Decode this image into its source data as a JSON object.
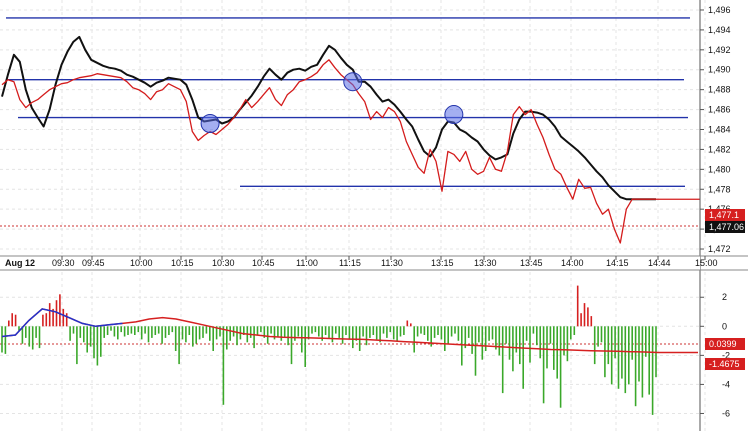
{
  "chart_data": [
    {
      "type": "line",
      "panel": "price",
      "date_label": "Aug 12",
      "x_tick_labels": [
        "09:30",
        "09:45",
        "10:00",
        "10:15",
        "10:30",
        "10:45",
        "11:00",
        "11:15",
        "11:30",
        "13:15",
        "13:30",
        "13:45",
        "14:00",
        "14:15",
        "14:44",
        "15:00"
      ],
      "y_ticks": [
        "1,472",
        "1,474",
        "1,476",
        "1,478",
        "1,480",
        "1,482",
        "1,484",
        "1,486",
        "1,488",
        "1,490",
        "1,492",
        "1,494",
        "1,496"
      ],
      "ylim": [
        1.4715,
        1.4965
      ],
      "grid": true,
      "x": [
        0,
        2,
        4,
        6,
        8,
        10,
        12,
        14,
        16,
        18,
        20,
        22,
        24,
        26,
        28,
        30,
        32,
        34,
        36,
        38,
        40,
        42,
        44,
        46,
        48,
        50,
        52,
        54,
        56,
        58,
        60,
        62,
        64,
        66,
        68,
        70,
        72,
        74,
        76,
        78,
        80,
        82,
        84,
        86,
        88,
        90,
        92,
        94,
        96,
        98,
        100,
        102,
        104,
        106,
        108,
        110,
        112,
        114,
        116,
        118,
        120,
        122,
        124,
        126,
        128,
        130,
        132,
        134,
        136,
        138,
        140,
        142,
        144,
        146,
        148,
        150,
        152,
        154,
        156,
        158,
        160,
        162,
        164,
        166,
        168,
        170,
        172,
        174,
        176,
        178,
        180,
        182,
        184,
        186,
        188,
        190,
        192,
        194,
        196,
        198,
        200,
        202,
        204,
        206,
        208,
        210,
        212,
        214,
        216,
        218,
        220
      ],
      "series": [
        {
          "values": [
            1.4873,
            1.4895,
            1.4915,
            1.4908,
            1.488,
            1.4862,
            1.4852,
            1.4843,
            1.486,
            1.4885,
            1.4905,
            1.4918,
            1.4928,
            1.4933,
            1.492,
            1.491,
            1.4907,
            1.4904,
            1.4902,
            1.4901,
            1.4899,
            1.4895,
            1.4893,
            1.489,
            1.4887,
            1.4883,
            1.4887,
            1.4889,
            1.4892,
            1.4891,
            1.489,
            1.4885,
            1.487,
            1.4852,
            1.4848,
            1.4849,
            1.485,
            1.4846,
            1.4848,
            1.4852,
            1.486,
            1.4867,
            1.4874,
            1.4883,
            1.4893,
            1.4901,
            1.4895,
            1.489,
            1.4897,
            1.49,
            1.4901,
            1.4899,
            1.4903,
            1.4905,
            1.4915,
            1.4924,
            1.492,
            1.4912,
            1.4905,
            1.49,
            1.4888,
            1.4888,
            1.4883,
            1.4875,
            1.4868,
            1.487,
            1.4865,
            1.4858,
            1.485,
            1.4843,
            1.483,
            1.4818,
            1.4813,
            1.4822,
            1.484,
            1.4848,
            1.4847,
            1.484,
            1.4837,
            1.4832,
            1.4828,
            1.482,
            1.4814,
            1.481,
            1.4812,
            1.4815,
            1.4836,
            1.485,
            1.4858,
            1.4858,
            1.4857,
            1.4855,
            1.485,
            1.4843,
            1.4833,
            1.4828,
            1.4823,
            1.4818,
            1.4812,
            1.4805,
            1.4798,
            1.4792,
            1.4784,
            1.4778,
            1.4772,
            1.477,
            1.477,
            1.477,
            1.477,
            1.477,
            1.477
          ]
        },
        {
          "values": [
            1.4885,
            1.489,
            1.4888,
            1.487,
            1.4862,
            1.4867,
            1.487,
            1.4875,
            1.488,
            1.4883,
            1.4886,
            1.4887,
            1.489,
            1.4892,
            1.4893,
            1.4894,
            1.4896,
            1.4895,
            1.4894,
            1.4893,
            1.4892,
            1.4888,
            1.4882,
            1.488,
            1.4876,
            1.487,
            1.4878,
            1.488,
            1.4886,
            1.4883,
            1.488,
            1.4868,
            1.4838,
            1.4829,
            1.4834,
            1.4838,
            1.4835,
            1.484,
            1.4845,
            1.4852,
            1.486,
            1.487,
            1.4862,
            1.4868,
            1.4875,
            1.4882,
            1.487,
            1.4864,
            1.4875,
            1.488,
            1.4888,
            1.489,
            1.4893,
            1.4897,
            1.4905,
            1.491,
            1.4902,
            1.4895,
            1.489,
            1.4885,
            1.4876,
            1.4868,
            1.485,
            1.4858,
            1.4852,
            1.4862,
            1.4858,
            1.4848,
            1.4828,
            1.4815,
            1.4802,
            1.4796,
            1.482,
            1.4808,
            1.4778,
            1.4818,
            1.4815,
            1.4808,
            1.4818,
            1.48,
            1.4795,
            1.4798,
            1.4812,
            1.48,
            1.4798,
            1.4818,
            1.4855,
            1.4863,
            1.4855,
            1.486,
            1.4845,
            1.4832,
            1.4815,
            1.48,
            1.4795,
            1.4782,
            1.477,
            1.479,
            1.4781,
            1.4782,
            1.4766,
            1.4755,
            1.476,
            1.474,
            1.4726,
            1.476,
            1.477,
            1.477,
            1.477,
            1.477,
            1.477
          ]
        }
      ],
      "horizontal_lines": [
        1.4952,
        1.489,
        1.4852,
        1.4783
      ],
      "marked_points": [
        [
          70,
          1.4846
        ],
        [
          118,
          1.4888
        ],
        [
          152,
          1.4855
        ]
      ],
      "last_value_labels": [
        "1,477.1",
        "1,477.06"
      ]
    },
    {
      "type": "bar",
      "panel": "indicator",
      "y_ticks": [
        "2",
        "0",
        "-2",
        "-4",
        "-6"
      ],
      "ylim": [
        -7,
        3.6
      ],
      "values": [
        -1.8,
        -1.9,
        0.4,
        0.9,
        0.8,
        -0.3,
        -1.2,
        -0.8,
        -1.4,
        -1.6,
        -0.8,
        -1.5,
        0.8,
        0.9,
        1.6,
        1.2,
        1.8,
        2.2,
        1.2,
        0.9,
        -1.0,
        -0.5,
        -2.6,
        -0.8,
        -1.1,
        -1.8,
        -1.4,
        -2.2,
        -2.7,
        -2.1,
        -0.8,
        -0.6,
        -0.3,
        -0.7,
        -0.9,
        -0.4,
        -0.7,
        -0.6,
        -0.5,
        -0.6,
        -0.4,
        -0.9,
        -0.5,
        -1.1,
        -0.8,
        -0.6,
        -0.5,
        -1.2,
        -0.8,
        -0.6,
        -0.4,
        -1.7,
        -2.6,
        -0.9,
        -1.1,
        -0.6,
        -1.4,
        -1.2,
        -0.9,
        -0.8,
        -0.5,
        -1.0,
        -1.7,
        -0.9,
        -0.7,
        -5.4,
        -1.6,
        -1.0,
        -0.7,
        -1.3,
        -0.9,
        -0.6,
        -1.1,
        -0.8,
        -1.5,
        -0.6,
        -0.4,
        -0.8,
        -1.2,
        -0.5,
        -0.9,
        -0.7,
        -1.0,
        -0.8,
        -1.3,
        -2.6,
        -1.0,
        -0.7,
        -1.8,
        -2.8,
        -0.9,
        -0.5,
        -0.4,
        -0.7,
        -1.0,
        -0.6,
        -0.8,
        -1.1,
        -0.5,
        -0.8,
        -1.2,
        -0.6,
        -0.9,
        -1.5,
        -1.0,
        -1.7,
        -0.7,
        -1.3,
        -0.8,
        -0.6,
        -0.9,
        -1.1,
        -0.5,
        -0.8,
        -0.4,
        -0.9,
        -1.0,
        -0.7,
        -0.6,
        0.4,
        0.2,
        -1.8,
        -0.7,
        -0.5,
        -0.6,
        -1.0,
        -1.4,
        -0.8,
        -0.6,
        -0.9,
        -1.7,
        -1.2,
        -0.7,
        -0.5,
        -1.0,
        -2.7,
        -1.5,
        -0.8,
        -1.9,
        -3.4,
        -1.1,
        -2.3,
        -1.7,
        -1.0,
        -0.9,
        -1.6,
        -2.0,
        -4.6,
        -1.2,
        -2.3,
        -3.1,
        -1.8,
        -2.6,
        -4.3,
        -1.0,
        -2.5,
        -0.5,
        -1.3,
        -2.2,
        -5.3,
        -2.9,
        -1.2,
        -3.0,
        -3.6,
        -5.6,
        -2.0,
        -2.4,
        -0.9,
        -0.6,
        2.8,
        0.9,
        1.6,
        1.3,
        0.7,
        -2.6,
        -1.4,
        -1.1,
        -3.5,
        -2.6,
        -4.0,
        -2.2,
        -4.3,
        -3.6,
        -4.6,
        -4.0,
        -2.3,
        -5.5,
        -3.8,
        -4.9,
        -2.1,
        -4.7,
        -6.1,
        -3.5
      ],
      "line_series": [
        -0.7,
        -0.6,
        0.4,
        1.2,
        1.0,
        0.6,
        0.2,
        0.0,
        0.1,
        0.2,
        0.3,
        0.5,
        0.6,
        0.5,
        0.3,
        0.1,
        -0.1,
        -0.3,
        -0.5,
        -0.6,
        -0.7,
        -0.75,
        -0.78,
        -0.8,
        -0.82,
        -0.85,
        -0.88,
        -0.9,
        -0.95,
        -1.0,
        -1.05,
        -1.1,
        -1.15,
        -1.2,
        -1.25,
        -1.3,
        -1.35,
        -1.4,
        -1.45,
        -1.5,
        -1.55,
        -1.6,
        -1.62,
        -1.65,
        -1.68,
        -1.7,
        -1.72,
        -1.75,
        -1.77,
        -1.8,
        -1.8,
        -1.8,
        -1.8
      ],
      "last_value_labels": [
        "0.0399",
        "-1.4675"
      ]
    }
  ]
}
